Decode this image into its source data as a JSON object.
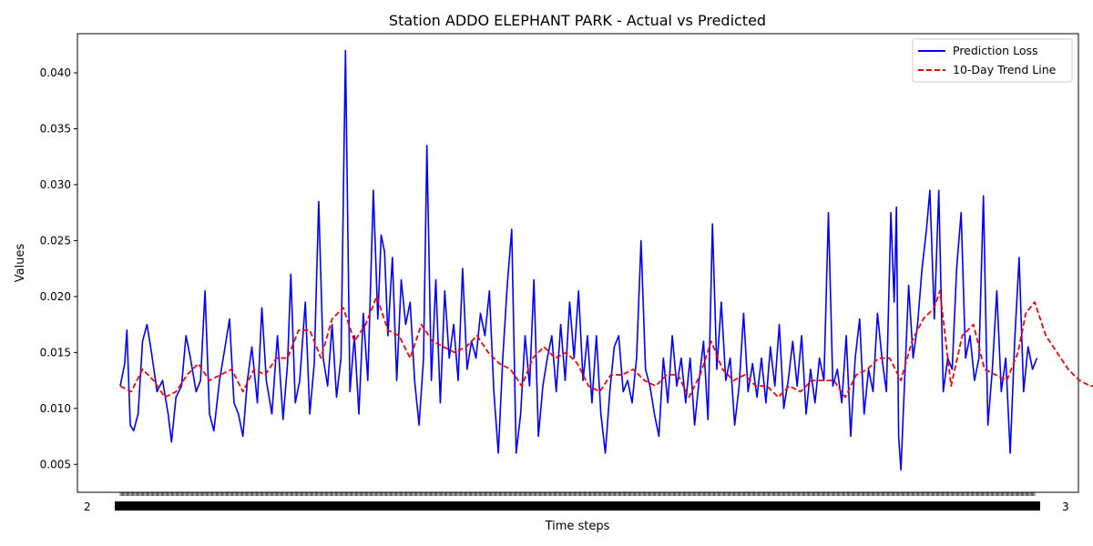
{
  "chart_data": {
    "type": "line",
    "title": "Station ADDO ELEPHANT PARK - Actual vs Predicted",
    "xlabel": "Time steps",
    "ylabel": "Values",
    "ylim": [
      0.0025,
      0.0435
    ],
    "y_ticks": [
      0.005,
      0.01,
      0.015,
      0.02,
      0.025,
      0.03,
      0.035,
      0.04
    ],
    "y_tick_labels": [
      "0.005",
      "0.010",
      "0.015",
      "0.020",
      "0.025",
      "0.030",
      "0.035",
      "0.040"
    ],
    "x_tick_count": 820,
    "x_tick_labels_visible": {
      "left": "2",
      "right": "3"
    },
    "grid": false,
    "legend_position": "top-right",
    "series": [
      {
        "name": "Prediction Loss",
        "color": "#0000ff",
        "style": "solid",
        "points": [
          [
            0,
            0.012
          ],
          [
            4,
            0.014
          ],
          [
            6,
            0.017
          ],
          [
            9,
            0.0085
          ],
          [
            12,
            0.008
          ],
          [
            16,
            0.0095
          ],
          [
            20,
            0.016
          ],
          [
            24,
            0.0175
          ],
          [
            28,
            0.015
          ],
          [
            33,
            0.0115
          ],
          [
            38,
            0.0125
          ],
          [
            43,
            0.0095
          ],
          [
            46,
            0.007
          ],
          [
            50,
            0.011
          ],
          [
            55,
            0.012
          ],
          [
            59,
            0.0165
          ],
          [
            63,
            0.0145
          ],
          [
            68,
            0.0115
          ],
          [
            72,
            0.0125
          ],
          [
            76,
            0.0205
          ],
          [
            80,
            0.0095
          ],
          [
            84,
            0.008
          ],
          [
            89,
            0.0125
          ],
          [
            94,
            0.0155
          ],
          [
            98,
            0.018
          ],
          [
            102,
            0.0105
          ],
          [
            106,
            0.0095
          ],
          [
            110,
            0.0075
          ],
          [
            114,
            0.0125
          ],
          [
            118,
            0.0155
          ],
          [
            123,
            0.0105
          ],
          [
            127,
            0.019
          ],
          [
            131,
            0.0125
          ],
          [
            136,
            0.0095
          ],
          [
            141,
            0.0165
          ],
          [
            146,
            0.009
          ],
          [
            150,
            0.014
          ],
          [
            153,
            0.022
          ],
          [
            157,
            0.0105
          ],
          [
            161,
            0.0125
          ],
          [
            166,
            0.0195
          ],
          [
            170,
            0.0095
          ],
          [
            174,
            0.014
          ],
          [
            178,
            0.0285
          ],
          [
            182,
            0.0145
          ],
          [
            186,
            0.012
          ],
          [
            190,
            0.0175
          ],
          [
            194,
            0.011
          ],
          [
            198,
            0.0145
          ],
          [
            202,
            0.042
          ],
          [
            206,
            0.0115
          ],
          [
            210,
            0.0165
          ],
          [
            214,
            0.0095
          ],
          [
            218,
            0.0185
          ],
          [
            222,
            0.0125
          ],
          [
            227,
            0.0295
          ],
          [
            231,
            0.018
          ],
          [
            234,
            0.0255
          ],
          [
            237,
            0.024
          ],
          [
            240,
            0.0165
          ],
          [
            244,
            0.0235
          ],
          [
            248,
            0.0125
          ],
          [
            252,
            0.0215
          ],
          [
            256,
            0.0175
          ],
          [
            260,
            0.0195
          ],
          [
            264,
            0.0125
          ],
          [
            268,
            0.0085
          ],
          [
            272,
            0.0145
          ],
          [
            275,
            0.0335
          ],
          [
            279,
            0.0125
          ],
          [
            283,
            0.0215
          ],
          [
            287,
            0.0105
          ],
          [
            291,
            0.0205
          ],
          [
            295,
            0.0145
          ],
          [
            299,
            0.0175
          ],
          [
            303,
            0.0125
          ],
          [
            307,
            0.0225
          ],
          [
            311,
            0.0135
          ],
          [
            315,
            0.016
          ],
          [
            319,
            0.0145
          ],
          [
            323,
            0.0185
          ],
          [
            327,
            0.0165
          ],
          [
            331,
            0.0205
          ],
          [
            335,
            0.0115
          ],
          [
            339,
            0.006
          ],
          [
            343,
            0.0145
          ],
          [
            347,
            0.021
          ],
          [
            351,
            0.026
          ],
          [
            355,
            0.006
          ],
          [
            359,
            0.0095
          ],
          [
            363,
            0.0165
          ],
          [
            367,
            0.012
          ],
          [
            371,
            0.0215
          ],
          [
            375,
            0.0075
          ],
          [
            379,
            0.012
          ],
          [
            383,
            0.0145
          ],
          [
            387,
            0.0165
          ],
          [
            391,
            0.0115
          ],
          [
            395,
            0.0175
          ],
          [
            399,
            0.0125
          ],
          [
            403,
            0.0195
          ],
          [
            407,
            0.0145
          ],
          [
            411,
            0.0205
          ],
          [
            415,
            0.0125
          ],
          [
            419,
            0.0165
          ],
          [
            423,
            0.0105
          ],
          [
            427,
            0.0165
          ],
          [
            431,
            0.0095
          ],
          [
            435,
            0.006
          ],
          [
            439,
            0.0115
          ],
          [
            443,
            0.0155
          ],
          [
            447,
            0.0165
          ],
          [
            451,
            0.0115
          ],
          [
            455,
            0.0125
          ],
          [
            459,
            0.0105
          ],
          [
            463,
            0.0145
          ],
          [
            467,
            0.025
          ],
          [
            471,
            0.0135
          ],
          [
            475,
            0.012
          ],
          [
            479,
            0.0095
          ],
          [
            483,
            0.0075
          ],
          [
            487,
            0.0145
          ],
          [
            491,
            0.0105
          ],
          [
            495,
            0.0165
          ],
          [
            499,
            0.012
          ],
          [
            503,
            0.0145
          ],
          [
            507,
            0.0105
          ],
          [
            511,
            0.0145
          ],
          [
            515,
            0.0085
          ],
          [
            519,
            0.0125
          ],
          [
            523,
            0.016
          ],
          [
            527,
            0.009
          ],
          [
            531,
            0.0265
          ],
          [
            535,
            0.0135
          ],
          [
            539,
            0.0195
          ],
          [
            543,
            0.0125
          ],
          [
            547,
            0.0145
          ],
          [
            551,
            0.0085
          ],
          [
            555,
            0.012
          ],
          [
            559,
            0.0185
          ],
          [
            563,
            0.0115
          ],
          [
            567,
            0.014
          ],
          [
            571,
            0.011
          ],
          [
            575,
            0.0145
          ],
          [
            579,
            0.0105
          ],
          [
            583,
            0.0155
          ],
          [
            587,
            0.012
          ],
          [
            591,
            0.0175
          ],
          [
            595,
            0.01
          ],
          [
            599,
            0.0125
          ],
          [
            603,
            0.016
          ],
          [
            607,
            0.012
          ],
          [
            611,
            0.0165
          ],
          [
            615,
            0.0095
          ],
          [
            619,
            0.0135
          ],
          [
            623,
            0.0105
          ],
          [
            627,
            0.0145
          ],
          [
            631,
            0.0125
          ],
          [
            635,
            0.0275
          ],
          [
            639,
            0.012
          ],
          [
            643,
            0.0135
          ],
          [
            647,
            0.0105
          ],
          [
            651,
            0.0165
          ],
          [
            655,
            0.0075
          ],
          [
            659,
            0.0145
          ],
          [
            663,
            0.018
          ],
          [
            667,
            0.0095
          ],
          [
            671,
            0.0135
          ],
          [
            675,
            0.0115
          ],
          [
            679,
            0.0185
          ],
          [
            683,
            0.0145
          ],
          [
            687,
            0.0115
          ],
          [
            691,
            0.0275
          ],
          [
            694,
            0.0195
          ],
          [
            696,
            0.028
          ],
          [
            698,
            0.0075
          ],
          [
            700,
            0.0045
          ],
          [
            703,
            0.0115
          ],
          [
            707,
            0.021
          ],
          [
            711,
            0.0145
          ],
          [
            715,
            0.0175
          ],
          [
            719,
            0.0225
          ],
          [
            723,
            0.026
          ],
          [
            726,
            0.0295
          ],
          [
            730,
            0.018
          ],
          [
            734,
            0.0295
          ],
          [
            738,
            0.0115
          ],
          [
            742,
            0.0145
          ],
          [
            746,
            0.0135
          ],
          [
            750,
            0.0225
          ],
          [
            754,
            0.0275
          ],
          [
            758,
            0.0145
          ],
          [
            762,
            0.0165
          ],
          [
            766,
            0.0125
          ],
          [
            770,
            0.0145
          ],
          [
            774,
            0.029
          ],
          [
            778,
            0.0085
          ],
          [
            782,
            0.0135
          ],
          [
            786,
            0.0205
          ],
          [
            790,
            0.0115
          ],
          [
            794,
            0.0145
          ],
          [
            798,
            0.006
          ],
          [
            802,
            0.016
          ],
          [
            806,
            0.0235
          ],
          [
            810,
            0.0115
          ],
          [
            814,
            0.0155
          ],
          [
            818,
            0.0135
          ],
          [
            822,
            0.0145
          ]
        ]
      },
      {
        "name": "10-Day Trend Line",
        "color": "#ff0000",
        "style": "dashed",
        "points": [
          [
            0,
            0.012
          ],
          [
            10,
            0.0115
          ],
          [
            20,
            0.0135
          ],
          [
            30,
            0.0125
          ],
          [
            40,
            0.011
          ],
          [
            50,
            0.0115
          ],
          [
            60,
            0.013
          ],
          [
            70,
            0.014
          ],
          [
            80,
            0.0125
          ],
          [
            90,
            0.013
          ],
          [
            100,
            0.0135
          ],
          [
            110,
            0.0115
          ],
          [
            120,
            0.0135
          ],
          [
            130,
            0.013
          ],
          [
            140,
            0.0145
          ],
          [
            150,
            0.0145
          ],
          [
            160,
            0.017
          ],
          [
            170,
            0.017
          ],
          [
            180,
            0.0145
          ],
          [
            190,
            0.018
          ],
          [
            200,
            0.019
          ],
          [
            210,
            0.016
          ],
          [
            220,
            0.0175
          ],
          [
            230,
            0.02
          ],
          [
            240,
            0.017
          ],
          [
            250,
            0.0165
          ],
          [
            260,
            0.0145
          ],
          [
            270,
            0.0175
          ],
          [
            280,
            0.016
          ],
          [
            290,
            0.0155
          ],
          [
            300,
            0.015
          ],
          [
            310,
            0.0155
          ],
          [
            320,
            0.0165
          ],
          [
            330,
            0.015
          ],
          [
            340,
            0.014
          ],
          [
            350,
            0.0135
          ],
          [
            360,
            0.012
          ],
          [
            370,
            0.0145
          ],
          [
            380,
            0.0155
          ],
          [
            390,
            0.0145
          ],
          [
            400,
            0.015
          ],
          [
            410,
            0.014
          ],
          [
            420,
            0.012
          ],
          [
            430,
            0.0115
          ],
          [
            440,
            0.013
          ],
          [
            450,
            0.013
          ],
          [
            460,
            0.0135
          ],
          [
            470,
            0.0125
          ],
          [
            480,
            0.012
          ],
          [
            490,
            0.013
          ],
          [
            500,
            0.013
          ],
          [
            510,
            0.011
          ],
          [
            520,
            0.013
          ],
          [
            530,
            0.016
          ],
          [
            540,
            0.0135
          ],
          [
            550,
            0.0125
          ],
          [
            560,
            0.013
          ],
          [
            570,
            0.012
          ],
          [
            580,
            0.012
          ],
          [
            590,
            0.011
          ],
          [
            600,
            0.012
          ],
          [
            610,
            0.0115
          ],
          [
            620,
            0.0125
          ],
          [
            630,
            0.0125
          ],
          [
            640,
            0.0125
          ],
          [
            650,
            0.011
          ],
          [
            660,
            0.013
          ],
          [
            670,
            0.0135
          ],
          [
            680,
            0.0145
          ],
          [
            690,
            0.0145
          ],
          [
            700,
            0.0125
          ],
          [
            710,
            0.016
          ],
          [
            720,
            0.018
          ],
          [
            730,
            0.019
          ],
          [
            735,
            0.0205
          ],
          [
            745,
            0.012
          ],
          [
            755,
            0.0165
          ],
          [
            765,
            0.0175
          ],
          [
            775,
            0.0135
          ],
          [
            785,
            0.013
          ],
          [
            795,
            0.0125
          ],
          [
            805,
            0.015
          ],
          [
            812,
            0.0185
          ],
          [
            820,
            0.0195
          ],
          [
            830,
            0.0165
          ],
          [
            840,
            0.015
          ],
          [
            850,
            0.0135
          ],
          [
            860,
            0.0125
          ],
          [
            870,
            0.012
          ],
          [
            880,
            0.012
          ],
          [
            890,
            0.0115
          ],
          [
            900,
            0.0135
          ],
          [
            910,
            0.014
          ],
          [
            920,
            0.0135
          ],
          [
            930,
            0.0145
          ],
          [
            940,
            0.0145
          ],
          [
            950,
            0.0135
          ],
          [
            960,
            0.0125
          ],
          [
            970,
            0.012
          ]
        ]
      }
    ]
  }
}
